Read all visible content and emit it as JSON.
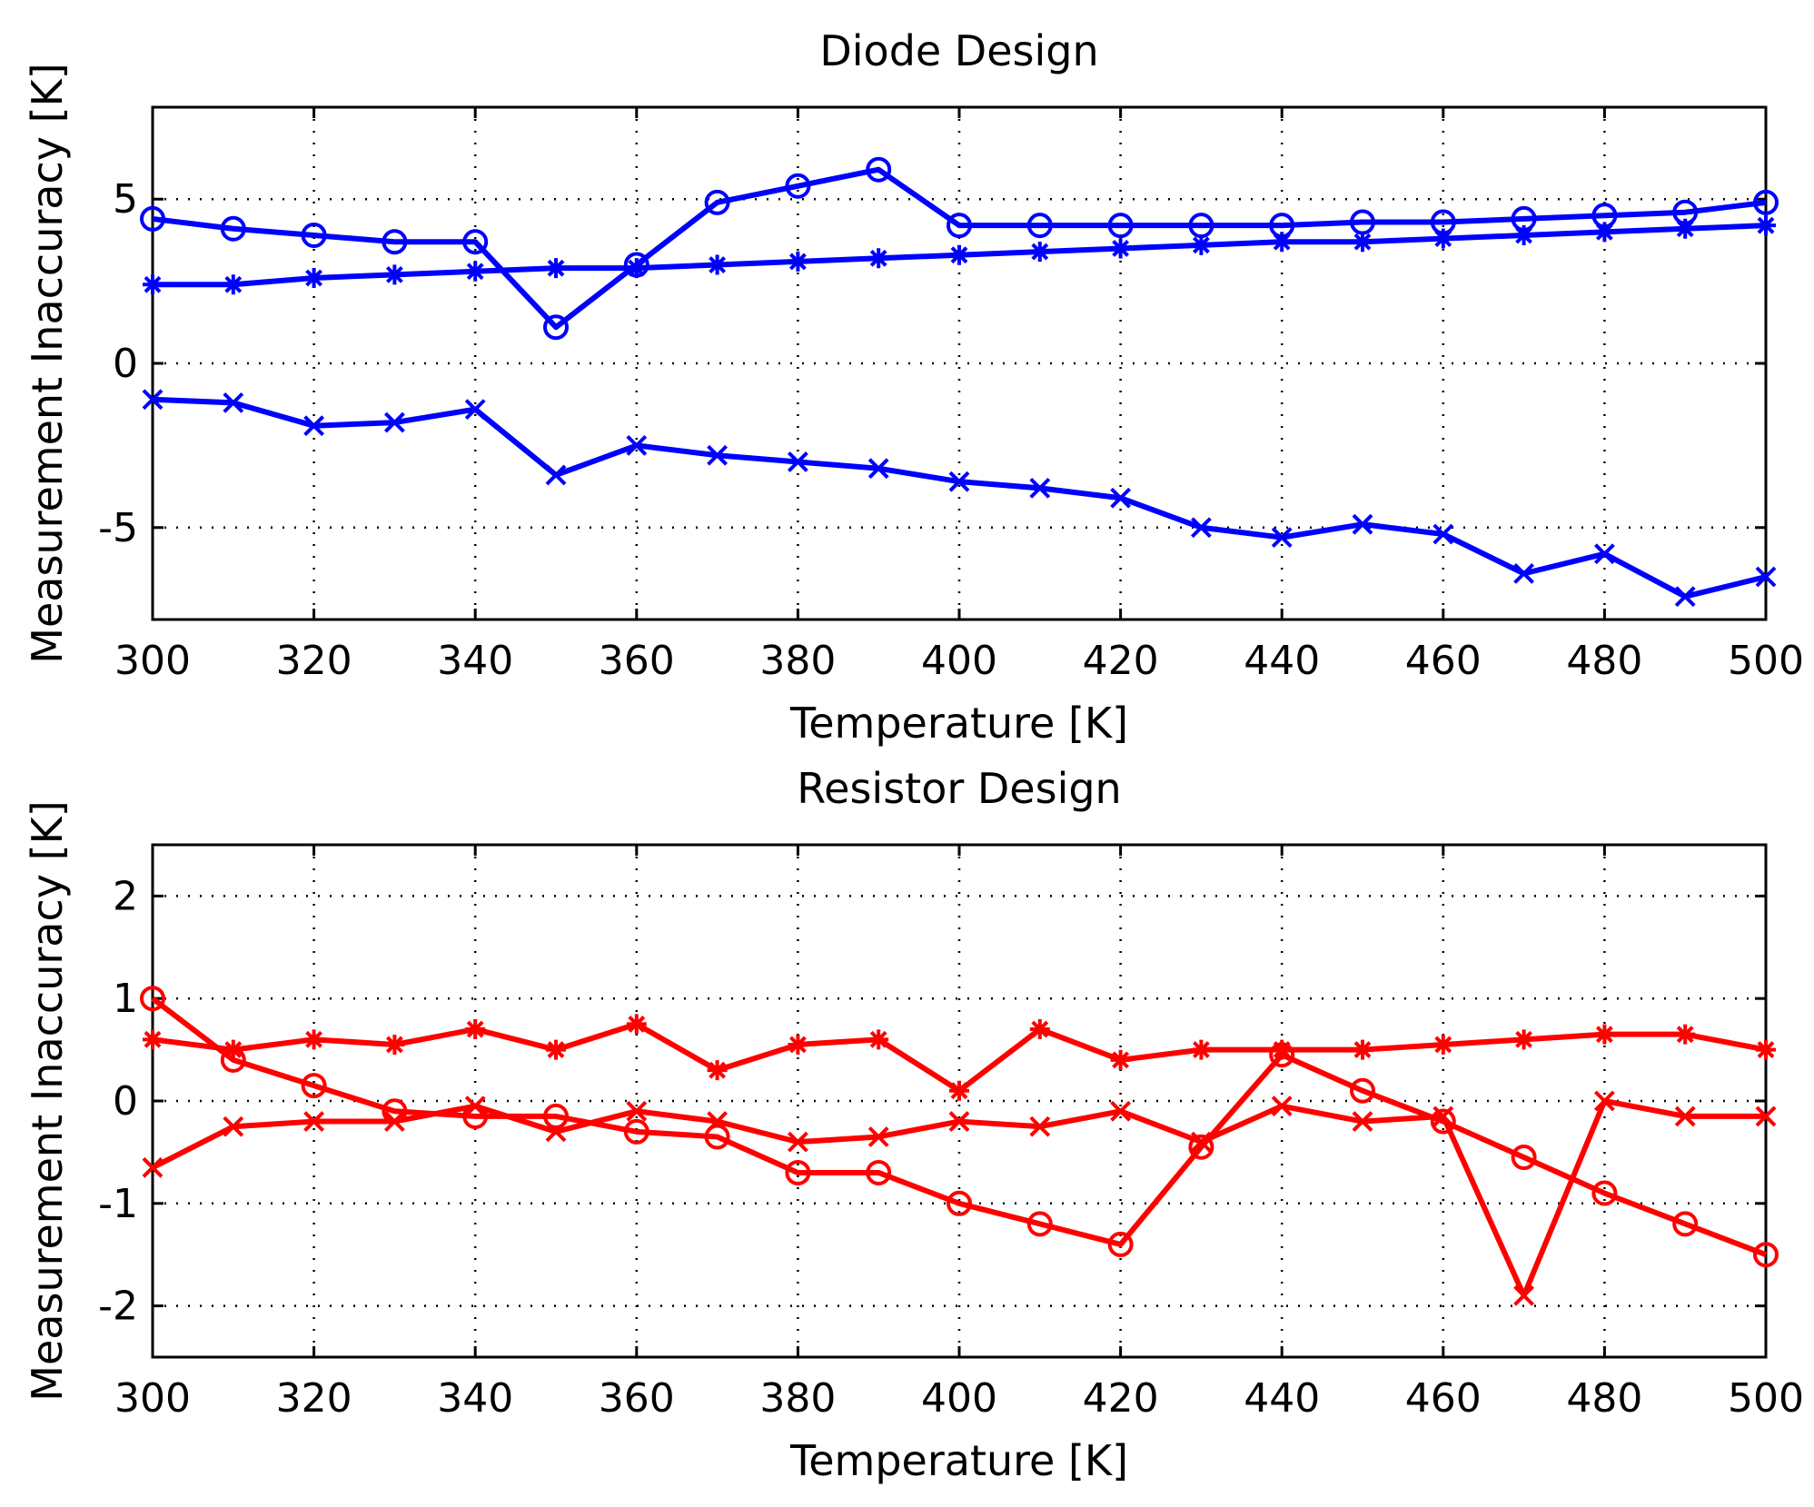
{
  "chart_data": [
    {
      "type": "line",
      "title": "Diode Design",
      "xlabel": "Temperature [K]",
      "ylabel": "Measurement Inaccuracy [K]",
      "xlim": [
        300,
        500
      ],
      "ylim": [
        -7.8,
        7.8
      ],
      "xticks": [
        300,
        320,
        340,
        360,
        380,
        400,
        420,
        440,
        460,
        480,
        500
      ],
      "yticks": [
        -5,
        0,
        5
      ],
      "grid": true,
      "color": "#0000ff",
      "x": [
        300,
        310,
        320,
        330,
        340,
        350,
        360,
        370,
        380,
        390,
        400,
        410,
        420,
        430,
        440,
        450,
        460,
        470,
        480,
        490,
        500
      ],
      "series": [
        {
          "name": "circle",
          "marker": "circle",
          "values": [
            4.4,
            4.1,
            3.9,
            3.7,
            3.7,
            1.1,
            3.0,
            4.9,
            5.4,
            5.9,
            4.2,
            4.2,
            4.2,
            4.2,
            4.2,
            4.3,
            4.3,
            4.4,
            4.5,
            4.6,
            4.9
          ]
        },
        {
          "name": "star",
          "marker": "star",
          "values": [
            2.4,
            2.4,
            2.6,
            2.7,
            2.8,
            2.9,
            2.9,
            3.0,
            3.1,
            3.2,
            3.3,
            3.4,
            3.5,
            3.6,
            3.7,
            3.7,
            3.8,
            3.9,
            4.0,
            4.1,
            4.2
          ]
        },
        {
          "name": "cross",
          "marker": "x",
          "values": [
            -1.1,
            -1.2,
            -1.9,
            -1.8,
            -1.4,
            -3.4,
            -2.5,
            -2.8,
            -3.0,
            -3.2,
            -3.6,
            -3.8,
            -4.1,
            -5.0,
            -5.3,
            -4.9,
            -5.2,
            -6.4,
            -5.8,
            -7.1,
            -6.5
          ]
        }
      ]
    },
    {
      "type": "line",
      "title": "Resistor Design",
      "xlabel": "Temperature [K]",
      "ylabel": "Measurement Inaccuracy [K]",
      "xlim": [
        300,
        500
      ],
      "ylim": [
        -2.5,
        2.5
      ],
      "xticks": [
        300,
        320,
        340,
        360,
        380,
        400,
        420,
        440,
        460,
        480,
        500
      ],
      "yticks": [
        -2,
        -1,
        0,
        1,
        2
      ],
      "grid": true,
      "color": "#ff0000",
      "x": [
        300,
        310,
        320,
        330,
        340,
        350,
        360,
        370,
        380,
        390,
        400,
        410,
        420,
        430,
        440,
        450,
        460,
        470,
        480,
        490,
        500
      ],
      "series": [
        {
          "name": "star",
          "marker": "star",
          "values": [
            0.6,
            0.5,
            0.6,
            0.55,
            0.7,
            0.5,
            0.75,
            0.3,
            0.55,
            0.6,
            0.1,
            0.7,
            0.4,
            0.5,
            0.5,
            0.5,
            0.55,
            0.6,
            0.65,
            0.65,
            0.5
          ]
        },
        {
          "name": "circle",
          "marker": "circle",
          "values": [
            1.0,
            0.4,
            0.15,
            -0.1,
            -0.15,
            -0.15,
            -0.3,
            -0.35,
            -0.7,
            -0.7,
            -1.0,
            -1.2,
            -1.4,
            -0.45,
            0.45,
            0.1,
            -0.2,
            -0.55,
            -0.9,
            -1.2,
            -1.5
          ]
        },
        {
          "name": "cross",
          "marker": "x",
          "values": [
            -0.65,
            -0.25,
            -0.2,
            -0.2,
            -0.05,
            -0.3,
            -0.1,
            -0.2,
            -0.4,
            -0.35,
            -0.2,
            -0.25,
            -0.1,
            -0.4,
            -0.05,
            -0.2,
            -0.15,
            -1.9,
            0.0,
            -0.15,
            -0.15
          ]
        }
      ]
    }
  ]
}
